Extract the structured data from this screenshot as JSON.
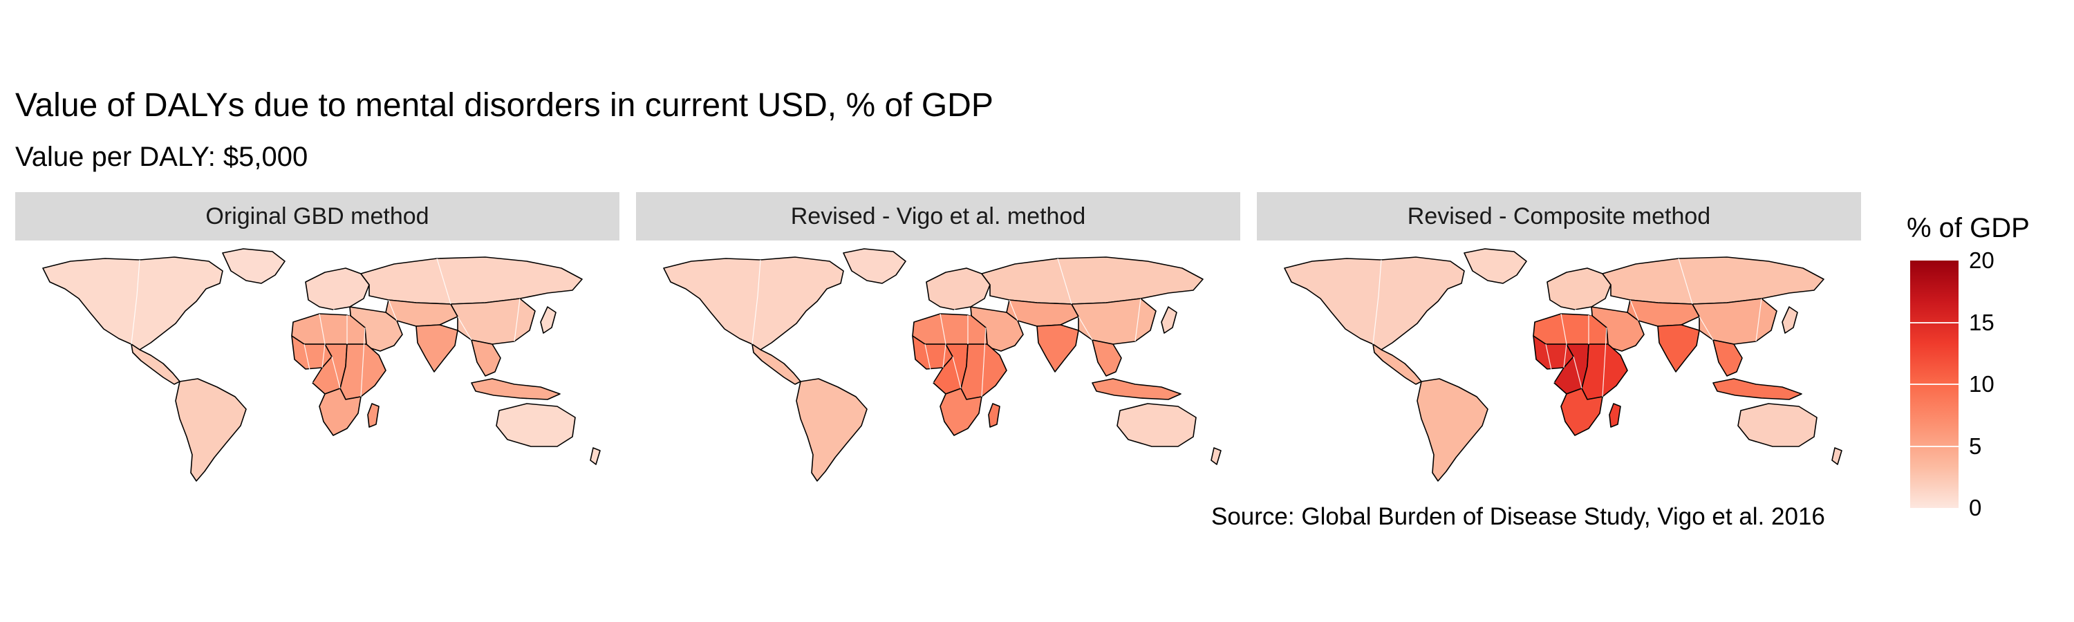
{
  "title": "Value of DALYs due to mental disorders in current USD, % of GDP",
  "subtitle": "Value per DALY: $5,000",
  "source": "Source: Global Burden of Disease Study, Vigo et al. 2016",
  "legend": {
    "title": "% of GDP",
    "ticks": [
      "20",
      "15",
      "10",
      "5",
      "0"
    ],
    "range": [
      0,
      20
    ],
    "colors": [
      "#fde7df",
      "#fcbba1",
      "#fc9272",
      "#fb6a4a",
      "#ef3b2c",
      "#cb181d",
      "#99000d"
    ]
  },
  "panels": [
    {
      "label": "Original GBD method",
      "values": {
        "north_america": 1.0,
        "greenland": 0.8,
        "central_america": 2.0,
        "south_america": 2.0,
        "europe": 1.2,
        "russia": 1.5,
        "africa_north": 4.5,
        "africa_west": 6.5,
        "africa_central": 6.5,
        "africa_east": 6.0,
        "africa_south": 5.0,
        "madagascar": 6.0,
        "middle_east": 3.0,
        "central_asia": 3.5,
        "south_asia": 5.5,
        "china": 2.5,
        "southeast_asia": 4.5,
        "japan": 1.0,
        "indonesia": 4.5,
        "australia": 1.0,
        "nz": 1.0
      }
    },
    {
      "label": "Revised - Vigo et al. method",
      "values": {
        "north_america": 1.5,
        "greenland": 1.2,
        "central_america": 3.0,
        "south_america": 3.0,
        "europe": 1.8,
        "russia": 2.2,
        "africa_north": 7.0,
        "africa_west": 9.0,
        "africa_central": 9.5,
        "africa_east": 8.5,
        "africa_south": 7.5,
        "madagascar": 8.5,
        "middle_east": 4.5,
        "central_asia": 5.0,
        "south_asia": 8.0,
        "china": 3.5,
        "southeast_asia": 6.5,
        "japan": 1.5,
        "indonesia": 6.5,
        "australia": 1.5,
        "nz": 1.5
      }
    },
    {
      "label": "Revised - Composite method",
      "values": {
        "north_america": 1.8,
        "greenland": 1.4,
        "central_america": 3.5,
        "south_america": 3.5,
        "europe": 2.0,
        "russia": 2.8,
        "africa_north": 9.5,
        "africa_west": 14.5,
        "africa_central": 15.5,
        "africa_east": 13.5,
        "africa_south": 12.0,
        "madagascar": 13.0,
        "middle_east": 6.0,
        "central_asia": 6.5,
        "south_asia": 10.5,
        "china": 4.5,
        "southeast_asia": 9.0,
        "japan": 1.8,
        "indonesia": 9.0,
        "australia": 1.8,
        "nz": 1.8
      }
    }
  ]
}
